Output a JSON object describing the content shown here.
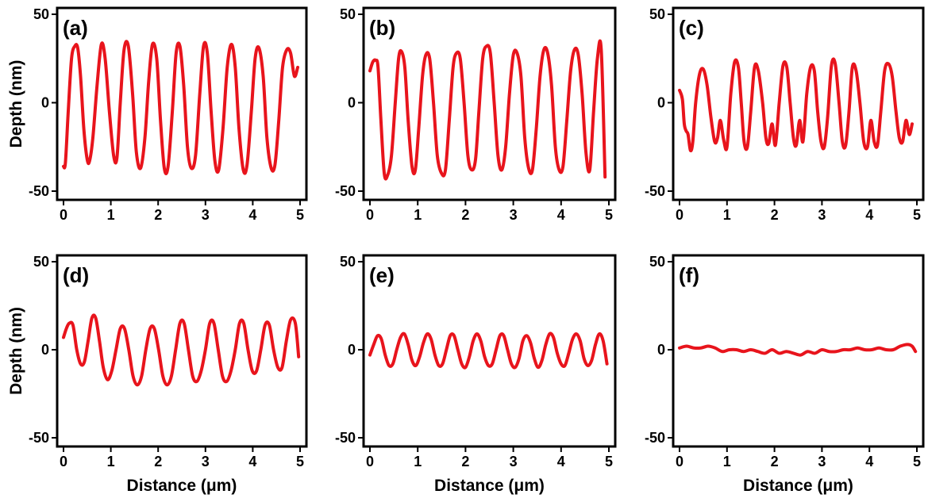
{
  "figure": {
    "line_color": "#e8141c"
  },
  "chart_data": [
    {
      "type": "line",
      "panel_label": "(a)",
      "ylabel": "Depth (nm)",
      "xlabel": "",
      "xlim": [
        0,
        5
      ],
      "ylim": [
        -50,
        50
      ],
      "xticks": [
        "0",
        "1",
        "2",
        "3",
        "4",
        "5"
      ],
      "yticks": [
        "50",
        "0",
        "-50"
      ],
      "grid": false,
      "series": [
        {
          "x": [
            0.0,
            0.04,
            0.1,
            0.17,
            0.24,
            0.3,
            0.36,
            0.43,
            0.5,
            0.55,
            0.62,
            0.71,
            0.8,
            0.88,
            0.97,
            1.06,
            1.13,
            1.2,
            1.28,
            1.37,
            1.46,
            1.54,
            1.63,
            1.72,
            1.8,
            1.88,
            1.97,
            2.05,
            2.13,
            2.21,
            2.3,
            2.38,
            2.46,
            2.54,
            2.62,
            2.7,
            2.79,
            2.88,
            2.96,
            3.04,
            3.12,
            3.2,
            3.28,
            3.37,
            3.46,
            3.55,
            3.63,
            3.71,
            3.8,
            3.88,
            3.97,
            4.05,
            4.13,
            4.22,
            4.3,
            4.39,
            4.47,
            4.55,
            4.63,
            4.72,
            4.8,
            4.88,
            4.95
          ],
          "y": [
            -36,
            -34,
            -5,
            25,
            32,
            31,
            15,
            -15,
            -32,
            -33,
            -20,
            10,
            33,
            25,
            -5,
            -30,
            -31,
            0,
            30,
            32,
            5,
            -28,
            -37,
            -20,
            12,
            33,
            25,
            -10,
            -37,
            -36,
            -5,
            28,
            32,
            10,
            -25,
            -37,
            -30,
            5,
            32,
            28,
            -5,
            -33,
            -38,
            -15,
            20,
            33,
            20,
            -15,
            -38,
            -35,
            -5,
            25,
            31,
            15,
            -20,
            -37,
            -35,
            -10,
            20,
            30,
            28,
            15,
            20
          ]
        }
      ]
    },
    {
      "type": "line",
      "panel_label": "(b)",
      "ylabel": "",
      "xlabel": "",
      "xlim": [
        0,
        5
      ],
      "ylim": [
        -50,
        50
      ],
      "xticks": [
        "0",
        "1",
        "2",
        "3",
        "4",
        "5"
      ],
      "yticks": [
        "50",
        "0",
        "-50"
      ],
      "grid": false,
      "series": [
        {
          "x": [
            0.0,
            0.06,
            0.12,
            0.17,
            0.23,
            0.3,
            0.37,
            0.45,
            0.53,
            0.6,
            0.66,
            0.73,
            0.8,
            0.88,
            0.95,
            1.02,
            1.1,
            1.17,
            1.25,
            1.33,
            1.41,
            1.5,
            1.58,
            1.66,
            1.74,
            1.81,
            1.89,
            1.97,
            2.05,
            2.13,
            2.21,
            2.28,
            2.36,
            2.44,
            2.52,
            2.6,
            2.68,
            2.76,
            2.84,
            2.92,
            3.0,
            3.08,
            3.16,
            3.24,
            3.32,
            3.4,
            3.48,
            3.56,
            3.64,
            3.72,
            3.8,
            3.88,
            3.96,
            4.04,
            4.12,
            4.2,
            4.28,
            4.36,
            4.44,
            4.52,
            4.6,
            4.68,
            4.76,
            4.84,
            4.92
          ],
          "y": [
            18,
            23,
            24,
            20,
            -10,
            -40,
            -41,
            -30,
            0,
            25,
            29,
            20,
            -10,
            -36,
            -38,
            -15,
            15,
            27,
            25,
            0,
            -30,
            -40,
            -38,
            -10,
            20,
            28,
            25,
            0,
            -30,
            -38,
            -32,
            -5,
            25,
            32,
            28,
            0,
            -30,
            -38,
            -25,
            5,
            27,
            28,
            15,
            -20,
            -37,
            -38,
            -15,
            15,
            30,
            28,
            10,
            -25,
            -38,
            -36,
            -10,
            18,
            30,
            27,
            5,
            -28,
            -38,
            -5,
            25,
            30,
            -42
          ]
        }
      ]
    },
    {
      "type": "line",
      "panel_label": "(c)",
      "ylabel": "",
      "xlabel": "",
      "xlim": [
        0,
        5
      ],
      "ylim": [
        -50,
        50
      ],
      "xticks": [
        "0",
        "1",
        "2",
        "3",
        "4",
        "5"
      ],
      "yticks": [
        "50",
        "0",
        "-50"
      ],
      "grid": false,
      "series": [
        {
          "x": [
            0.0,
            0.06,
            0.1,
            0.14,
            0.18,
            0.23,
            0.28,
            0.34,
            0.42,
            0.5,
            0.58,
            0.66,
            0.74,
            0.8,
            0.86,
            0.93,
            1.0,
            1.08,
            1.16,
            1.24,
            1.3,
            1.36,
            1.43,
            1.5,
            1.58,
            1.66,
            1.75,
            1.82,
            1.88,
            1.95,
            2.02,
            2.1,
            2.18,
            2.26,
            2.33,
            2.4,
            2.46,
            2.53,
            2.6,
            2.68,
            2.76,
            2.84,
            2.91,
            2.98,
            3.05,
            3.12,
            3.2,
            3.28,
            3.36,
            3.43,
            3.5,
            3.57,
            3.64,
            3.72,
            3.8,
            3.88,
            3.96,
            4.03,
            4.1,
            4.17,
            4.24,
            4.32,
            4.4,
            4.48,
            4.56,
            4.63,
            4.7,
            4.77,
            4.84,
            4.9
          ],
          "y": [
            7,
            2,
            -12,
            -16,
            -18,
            -27,
            -22,
            0,
            16,
            19,
            10,
            -8,
            -22,
            -20,
            -10,
            -21,
            -25,
            5,
            23,
            20,
            0,
            -22,
            -25,
            -5,
            20,
            18,
            0,
            -20,
            -23,
            -12,
            -24,
            0,
            21,
            20,
            0,
            -20,
            -24,
            -10,
            -22,
            5,
            20,
            18,
            -5,
            -22,
            -25,
            -8,
            21,
            22,
            0,
            -22,
            -24,
            -5,
            20,
            18,
            0,
            -22,
            -25,
            -10,
            -22,
            -24,
            -5,
            18,
            22,
            15,
            -5,
            -20,
            -22,
            -10,
            -18,
            -12
          ]
        }
      ]
    },
    {
      "type": "line",
      "panel_label": "(d)",
      "ylabel": "Depth (nm)",
      "xlabel": "Distance (μm)",
      "xlim": [
        0,
        5
      ],
      "ylim": [
        -50,
        50
      ],
      "xticks": [
        "0",
        "1",
        "2",
        "3",
        "4",
        "5"
      ],
      "yticks": [
        "50",
        "0",
        "-50"
      ],
      "grid": false,
      "series": [
        {
          "x": [
            0.0,
            0.06,
            0.12,
            0.2,
            0.28,
            0.36,
            0.44,
            0.52,
            0.6,
            0.68,
            0.76,
            0.84,
            0.93,
            1.02,
            1.11,
            1.2,
            1.29,
            1.38,
            1.47,
            1.56,
            1.65,
            1.74,
            1.83,
            1.92,
            2.01,
            2.1,
            2.19,
            2.28,
            2.37,
            2.46,
            2.55,
            2.64,
            2.73,
            2.82,
            2.91,
            3.0,
            3.09,
            3.18,
            3.27,
            3.36,
            3.45,
            3.54,
            3.63,
            3.72,
            3.81,
            3.9,
            3.99,
            4.08,
            4.17,
            4.26,
            4.35,
            4.44,
            4.53,
            4.62,
            4.71,
            4.8,
            4.9,
            4.97
          ],
          "y": [
            7,
            12,
            15,
            14,
            0,
            -8,
            -7,
            5,
            18,
            18,
            5,
            -10,
            -17,
            -12,
            0,
            12,
            12,
            0,
            -15,
            -20,
            -15,
            0,
            12,
            12,
            0,
            -15,
            -20,
            -15,
            0,
            15,
            15,
            0,
            -15,
            -18,
            -12,
            0,
            15,
            15,
            0,
            -15,
            -18,
            -12,
            0,
            15,
            15,
            0,
            -12,
            -12,
            0,
            14,
            14,
            0,
            -10,
            -10,
            5,
            17,
            15,
            -4
          ]
        }
      ]
    },
    {
      "type": "line",
      "panel_label": "(e)",
      "ylabel": "",
      "xlabel": "Distance (μm)",
      "xlim": [
        0,
        5
      ],
      "ylim": [
        -50,
        50
      ],
      "xticks": [
        "0",
        "1",
        "2",
        "3",
        "4",
        "5"
      ],
      "yticks": [
        "50",
        "0",
        "-50"
      ],
      "grid": false,
      "series": [
        {
          "x": [
            0.0,
            0.08,
            0.16,
            0.24,
            0.32,
            0.4,
            0.48,
            0.56,
            0.64,
            0.72,
            0.8,
            0.88,
            0.96,
            1.04,
            1.12,
            1.2,
            1.28,
            1.36,
            1.44,
            1.52,
            1.6,
            1.68,
            1.76,
            1.84,
            1.92,
            2.0,
            2.08,
            2.16,
            2.24,
            2.32,
            2.4,
            2.48,
            2.56,
            2.64,
            2.72,
            2.8,
            2.88,
            2.96,
            3.04,
            3.12,
            3.2,
            3.28,
            3.36,
            3.44,
            3.52,
            3.6,
            3.68,
            3.76,
            3.84,
            3.92,
            4.0,
            4.08,
            4.16,
            4.24,
            4.32,
            4.4,
            4.48,
            4.56,
            4.64,
            4.72,
            4.8,
            4.88,
            4.96
          ],
          "y": [
            -3,
            3,
            8,
            6,
            -3,
            -9,
            -8,
            0,
            7,
            9,
            3,
            -6,
            -9,
            -4,
            4,
            9,
            6,
            -3,
            -9,
            -8,
            0,
            8,
            8,
            0,
            -8,
            -10,
            -4,
            5,
            9,
            5,
            -4,
            -9,
            -8,
            0,
            8,
            8,
            0,
            -8,
            -10,
            -5,
            5,
            8,
            4,
            -5,
            -10,
            -6,
            3,
            9,
            7,
            -2,
            -8,
            -9,
            -2,
            6,
            9,
            5,
            -5,
            -9,
            -6,
            3,
            9,
            5,
            -8
          ]
        }
      ]
    },
    {
      "type": "line",
      "panel_label": "(f)",
      "ylabel": "",
      "xlabel": "Distance (μm)",
      "xlim": [
        0,
        5
      ],
      "ylim": [
        -50,
        50
      ],
      "xticks": [
        "0",
        "1",
        "2",
        "3",
        "4",
        "5"
      ],
      "yticks": [
        "50",
        "0",
        "-50"
      ],
      "grid": false,
      "series": [
        {
          "x": [
            0.0,
            0.15,
            0.3,
            0.45,
            0.6,
            0.75,
            0.9,
            1.05,
            1.2,
            1.35,
            1.5,
            1.65,
            1.8,
            1.95,
            2.1,
            2.25,
            2.4,
            2.55,
            2.7,
            2.85,
            3.0,
            3.15,
            3.3,
            3.45,
            3.6,
            3.75,
            3.9,
            4.05,
            4.2,
            4.35,
            4.5,
            4.65,
            4.8,
            4.9,
            4.97
          ],
          "y": [
            1,
            2,
            1,
            1,
            2,
            1,
            -1,
            0,
            0,
            -1,
            0,
            -1,
            -2,
            0,
            -2,
            -1,
            -2,
            -3,
            -1,
            -2,
            0,
            -1,
            -1,
            0,
            0,
            1,
            0,
            0,
            1,
            0,
            0,
            2,
            3,
            2,
            -1
          ]
        }
      ]
    }
  ]
}
